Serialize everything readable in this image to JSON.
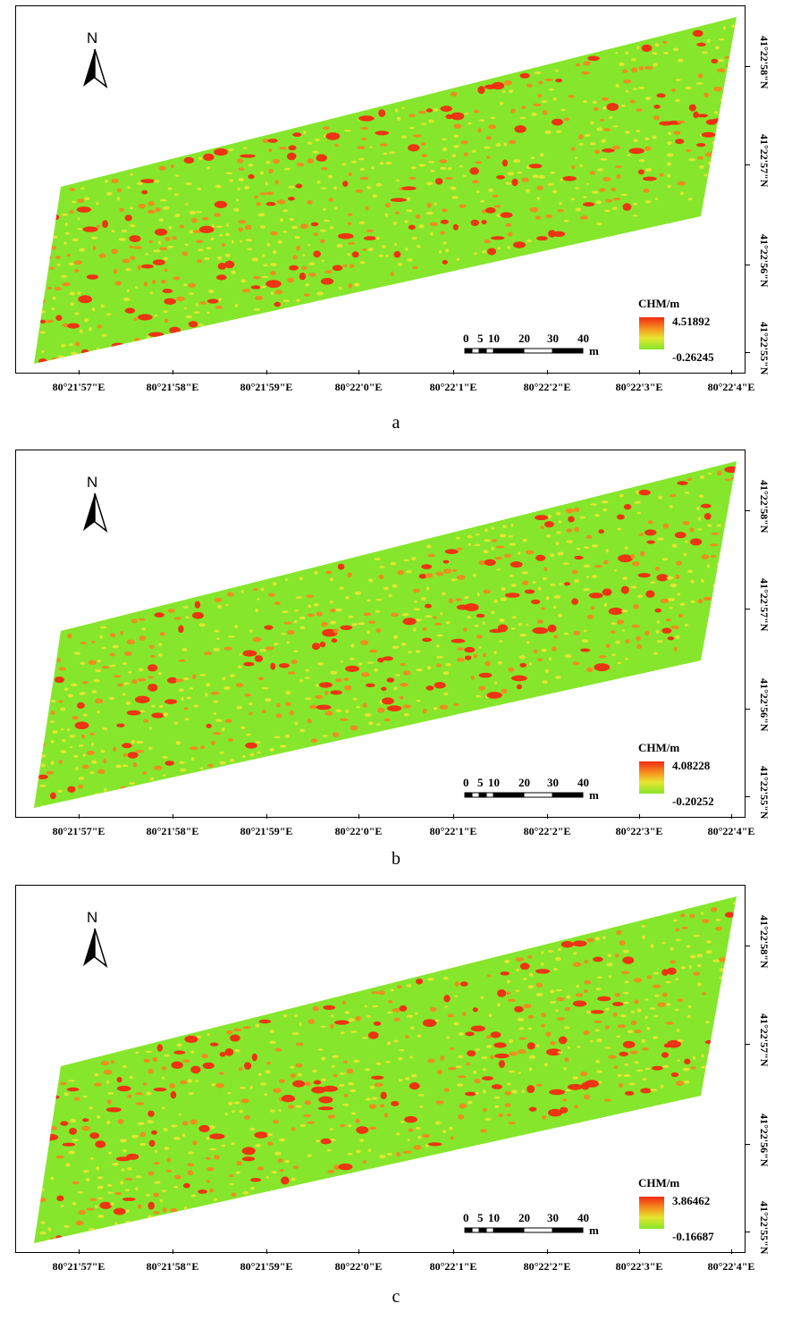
{
  "panels": [
    {
      "caption": "a",
      "legend": {
        "title": "CHM/m",
        "max": "4.51892",
        "min": "-0.26245"
      }
    },
    {
      "caption": "b",
      "legend": {
        "title": "CHM/m",
        "max": "4.08228",
        "min": "-0.20252"
      }
    },
    {
      "caption": "c",
      "legend": {
        "title": "CHM/m",
        "max": "3.86462",
        "min": "-0.16687"
      }
    }
  ],
  "north_label": "N",
  "scale_bar": {
    "ticks": [
      "0",
      "5",
      "10",
      "20",
      "30",
      "40"
    ],
    "unit": "m"
  },
  "longitude_labels": [
    "80°21'57\"E",
    "80°21'58\"E",
    "80°21'59\"E",
    "80°22'0\"E",
    "80°22'1\"E",
    "80°22'2\"E",
    "80°22'3\"E",
    "80°22'4\"E"
  ],
  "latitude_labels": [
    "41°22'58\"N",
    "41°22'57\"N",
    "41°22'56\"N",
    "41°22'55\"N"
  ],
  "colors": {
    "field_low": "#86e62c",
    "field_mid": "#e6e630",
    "field_high": "#f22a12"
  }
}
